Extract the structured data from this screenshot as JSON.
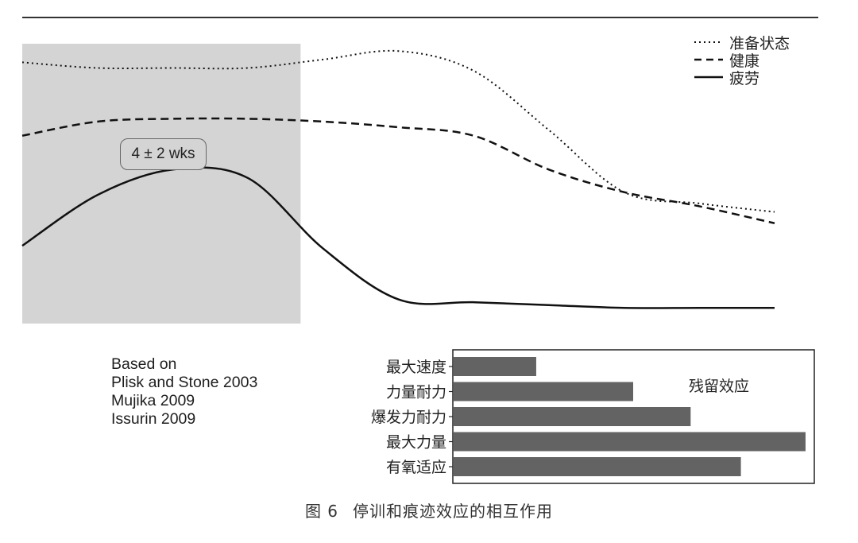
{
  "chart_data": [
    {
      "type": "line",
      "title": "",
      "xlabel": "",
      "ylabel": "",
      "x": [
        0,
        10,
        20,
        30,
        40,
        50,
        60,
        70,
        80,
        90,
        100
      ],
      "xlim": [
        0,
        100
      ],
      "ylim": [
        0,
        100
      ],
      "series": [
        {
          "name": "准备状态",
          "style": "dotted",
          "values": [
            92,
            90,
            90,
            90,
            93,
            96,
            89,
            68,
            46,
            42,
            39
          ]
        },
        {
          "name": "健康",
          "style": "dashed",
          "values": [
            66,
            71,
            72,
            72,
            71,
            69,
            66,
            54,
            46,
            41,
            35
          ]
        },
        {
          "name": "疲劳",
          "style": "solid",
          "values": [
            27,
            45,
            54,
            51,
            26,
            8,
            7,
            6,
            5,
            5,
            5
          ]
        }
      ],
      "shaded_region": {
        "x_start": 0,
        "x_end": 37,
        "label": "4 ± 2 wks"
      },
      "legend_position": "top-right"
    },
    {
      "type": "bar",
      "orientation": "horizontal",
      "title": "残留效应",
      "categories": [
        "最大速度",
        "力量耐力",
        "爆发力耐力",
        "最大力量",
        "有氧适应"
      ],
      "values": [
        23,
        50,
        66,
        98,
        80
      ],
      "xlim": [
        0,
        100
      ]
    }
  ],
  "sources": [
    "Based on",
    "Plisk and Stone 2003",
    "Mujika 2009",
    "Issurin 2009"
  ],
  "caption": {
    "figure_number": "图 6",
    "text": "停训和痕迹效应的相互作用"
  },
  "colors": {
    "shade": "#d4d4d4",
    "bar": "#636363",
    "line": "#111111"
  }
}
